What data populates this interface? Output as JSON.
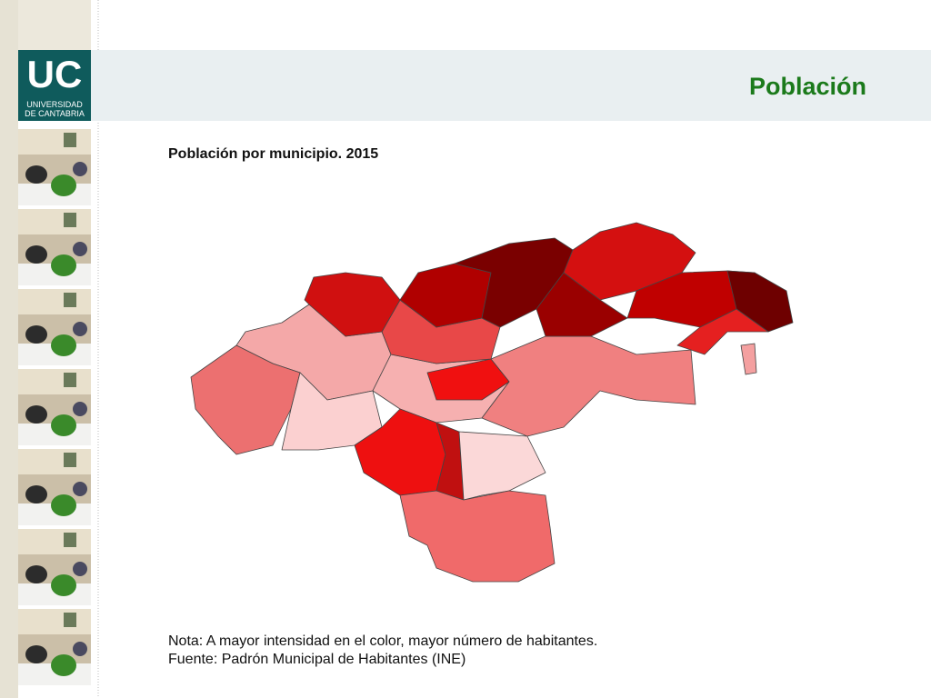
{
  "header": {
    "logo_text": "UC",
    "logo_subtitle_1": "UNIVERSIDAD",
    "logo_subtitle_2": "DE CANTABRIA",
    "title": "Población"
  },
  "map": {
    "title": "Población por municipio. 2015",
    "note": "Nota: A mayor intensidad en el color, mayor número de habitantes.",
    "source": "Fuente: Padrón Municipal de Habitantes (INE)"
  }
}
